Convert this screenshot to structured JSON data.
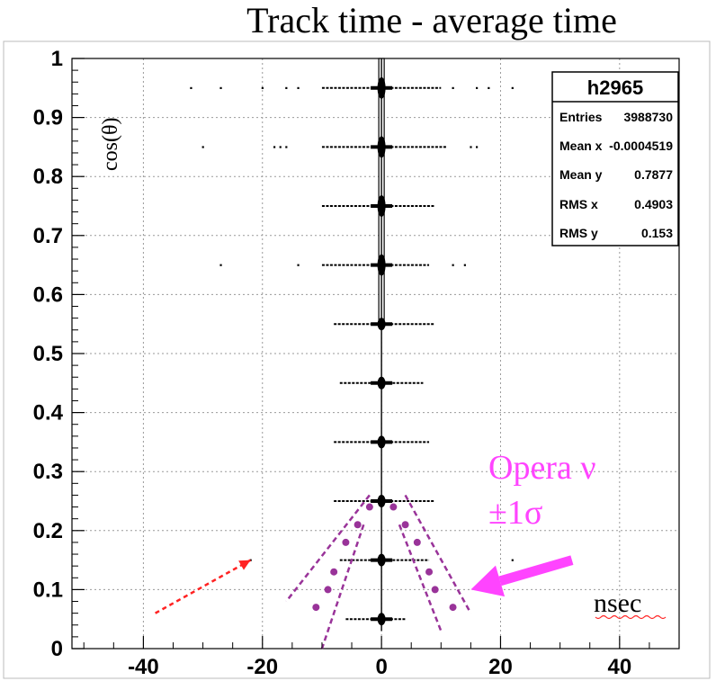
{
  "chart_data": {
    "type": "scatter",
    "title": "Track time - average time",
    "ylabel": "cos(θ)",
    "xunit": "nsec",
    "xlim": [
      -52,
      50
    ],
    "ylim": [
      0,
      1
    ],
    "xticks": [
      -40,
      -20,
      0,
      20,
      40
    ],
    "yticks": [
      0,
      0.1,
      0.2,
      0.3,
      0.4,
      0.5,
      0.6,
      0.7,
      0.8,
      0.9,
      1
    ],
    "grid": true,
    "stats_box": {
      "name": "h2965",
      "rows": [
        {
          "label": "Entries",
          "value": "3988730"
        },
        {
          "label": "Mean x",
          "value": "-0.0004519"
        },
        {
          "label": "Mean y",
          "value": "0.7877"
        },
        {
          "label": "RMS x",
          "value": "0.4903"
        },
        {
          "label": "RMS y",
          "value": "0.153"
        }
      ]
    },
    "distribution_bands": [
      {
        "y": 0.95,
        "dense": [
          -10,
          10
        ],
        "sparse": [
          -32,
          -27,
          -20,
          -16,
          -14,
          12,
          16,
          18,
          22
        ]
      },
      {
        "y": 0.85,
        "dense": [
          -10,
          11
        ],
        "sparse": [
          -30,
          -18,
          -17,
          -16,
          15,
          16
        ]
      },
      {
        "y": 0.75,
        "dense": [
          -10,
          9
        ],
        "sparse": []
      },
      {
        "y": 0.65,
        "dense": [
          -10,
          8
        ],
        "sparse": [
          -27,
          -14,
          12,
          14
        ]
      },
      {
        "y": 0.55,
        "dense": [
          -8,
          9
        ],
        "sparse": []
      },
      {
        "y": 0.45,
        "dense": [
          -7,
          7
        ],
        "sparse": []
      },
      {
        "y": 0.35,
        "dense": [
          -8,
          8
        ],
        "sparse": []
      },
      {
        "y": 0.25,
        "dense": [
          -8,
          9
        ],
        "sparse": []
      },
      {
        "y": 0.15,
        "dense": [
          -7,
          8
        ],
        "sparse": [
          -22,
          22
        ]
      },
      {
        "y": 0.05,
        "dense": [
          -6,
          4
        ],
        "sparse": []
      }
    ],
    "annotations": {
      "opera_label": "Opera ν",
      "sigma_label": "±1σ",
      "unit_label": "nsec",
      "opera_dots_left": [
        [
          -2,
          0.24
        ],
        [
          -4,
          0.21
        ],
        [
          -6,
          0.18
        ],
        [
          -8,
          0.13
        ],
        [
          -9,
          0.1
        ],
        [
          -11,
          0.07
        ]
      ],
      "opera_dots_right": [
        [
          2,
          0.24
        ],
        [
          4,
          0.21
        ],
        [
          6,
          0.18
        ],
        [
          8,
          0.13
        ],
        [
          9,
          0.1
        ],
        [
          12,
          0.07
        ]
      ],
      "sigma_left_outer": [
        [
          -2,
          0.26
        ],
        [
          -16,
          0.08
        ]
      ],
      "sigma_left_inner": [
        [
          -3,
          0.21
        ],
        [
          -10,
          0.0
        ]
      ],
      "sigma_right_outer": [
        [
          4,
          0.26
        ],
        [
          15,
          0.06
        ]
      ],
      "sigma_right_inner": [
        [
          3,
          0.21
        ],
        [
          10,
          0.03
        ]
      ],
      "red_arrow": [
        [
          -38,
          0.06
        ],
        [
          -22,
          0.15
        ]
      ],
      "magenta_arrow": [
        [
          32,
          0.15
        ],
        [
          15,
          0.1
        ]
      ]
    },
    "colors": {
      "dots": "#993399",
      "sigma": "#993399",
      "label": "#ff44ff",
      "red_arrow": "#ff2222",
      "arrow": "#ff44ff"
    }
  }
}
